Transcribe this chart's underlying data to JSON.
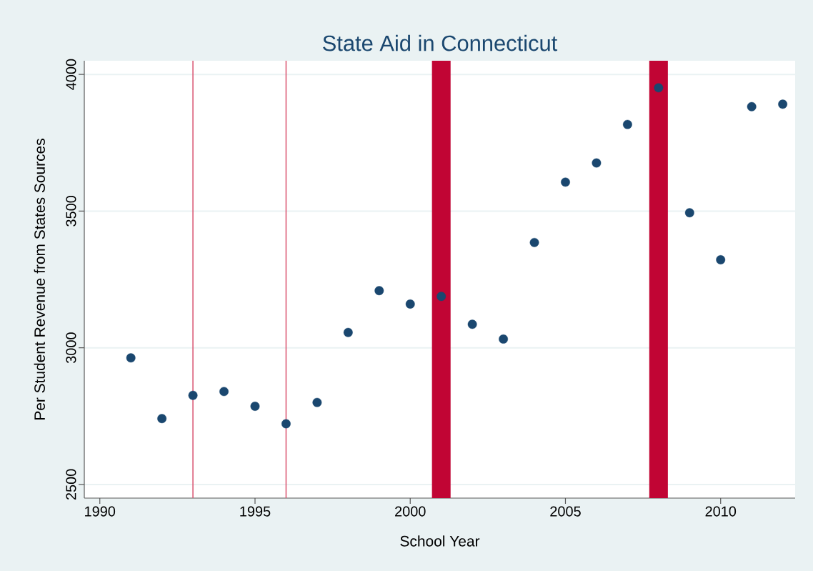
{
  "chart_data": {
    "type": "scatter",
    "title": "State Aid in Connecticut",
    "xlabel": "School Year",
    "ylabel": "Per Student Revenue from States Sources",
    "x": [
      1991,
      1992,
      1993,
      1994,
      1995,
      1996,
      1997,
      1998,
      1999,
      2000,
      2001,
      2002,
      2003,
      2004,
      2005,
      2006,
      2007,
      2008,
      2009,
      2010,
      2011,
      2012
    ],
    "series": [
      {
        "color": "#1a476f",
        "values": [
          2963,
          2741,
          2826,
          2840,
          2786,
          2722,
          2800,
          3056,
          3209,
          3160,
          3188,
          3086,
          3032,
          3385,
          3606,
          3676,
          3817,
          3951,
          3494,
          3322,
          3882,
          3891
        ]
      }
    ],
    "xlim": [
      1989.5,
      2012.4
    ],
    "ylim": [
      2450,
      4050
    ],
    "xticks": [
      1990,
      1995,
      2000,
      2005,
      2010
    ],
    "yticks": [
      2500,
      3000,
      3500,
      4000
    ],
    "grid": "y",
    "marker": "circle",
    "ref_lines": [
      {
        "axis": "x",
        "value": 1993,
        "color": "#d9536f"
      },
      {
        "axis": "x",
        "value": 1996,
        "color": "#d9536f"
      }
    ],
    "bands": [
      {
        "axis": "x",
        "from": 2000.7,
        "to": 2001.3,
        "color": "#c10534"
      },
      {
        "axis": "x",
        "from": 2007.7,
        "to": 2008.3,
        "color": "#c10534"
      }
    ]
  }
}
